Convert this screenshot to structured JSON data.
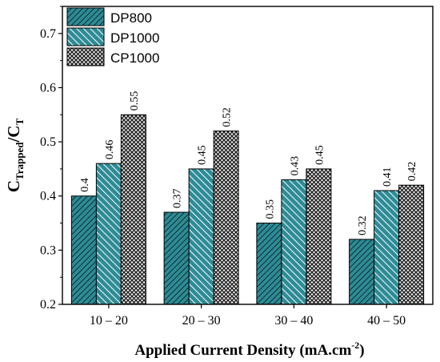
{
  "chart_data": {
    "type": "bar",
    "categories": [
      "10 – 20",
      "20 – 30",
      "30 – 40",
      "40 – 50"
    ],
    "series": [
      {
        "name": "DP800",
        "values": [
          0.4,
          0.37,
          0.35,
          0.32
        ],
        "value_labels": [
          "0.4",
          "0.37",
          "0.35",
          "0.32"
        ],
        "color": "#2e8b95",
        "pattern": "dense-diagonal-hatch"
      },
      {
        "name": "DP1000",
        "values": [
          0.46,
          0.45,
          0.43,
          0.41
        ],
        "value_labels": [
          "0.46",
          "0.45",
          "0.43",
          "0.41"
        ],
        "color": "#2e8b95",
        "pattern": "diagonal-hatch"
      },
      {
        "name": "CP1000",
        "values": [
          0.55,
          0.52,
          0.45,
          0.42
        ],
        "value_labels": [
          "0.55",
          "0.52",
          "0.45",
          "0.42"
        ],
        "color": "#1a1a1a",
        "pattern": "crosshatch"
      }
    ],
    "xlabel": {
      "main": "Applied Current Density (mA.cm",
      "sup": "-2",
      "close": ")"
    },
    "ylabel": {
      "c1": "C",
      "sub1": "Trapped",
      "slash": "/C",
      "sub2": "T"
    },
    "yticks": [
      "0.2",
      "0.3",
      "0.4",
      "0.5",
      "0.6",
      "0.7"
    ],
    "ylim": [
      0.2,
      0.75
    ],
    "grid": false,
    "legend_position": "top-left"
  }
}
